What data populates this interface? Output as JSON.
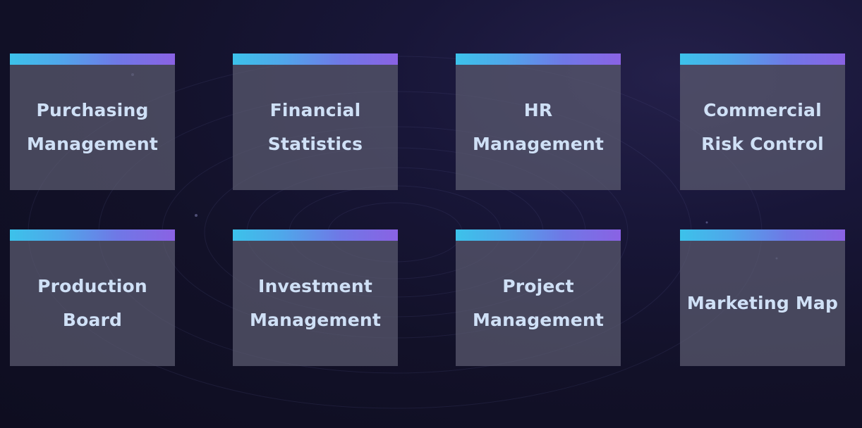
{
  "theme": {
    "background": "#121128",
    "tile_color": "#5c5c70",
    "bar_start": "#3cc2ea",
    "bar_end": "#8a62e4",
    "label_color": "#cfe0f6"
  },
  "tiles": [
    {
      "label": "Purchasing\nManagement"
    },
    {
      "label": "Financial\nStatistics"
    },
    {
      "label": "HR\nManagement"
    },
    {
      "label": "Commercial\nRisk Control"
    },
    {
      "label": "Production\nBoard"
    },
    {
      "label": "Investment\nManagement"
    },
    {
      "label": "Project\nManagement"
    },
    {
      "label": "Marketing Map"
    }
  ]
}
